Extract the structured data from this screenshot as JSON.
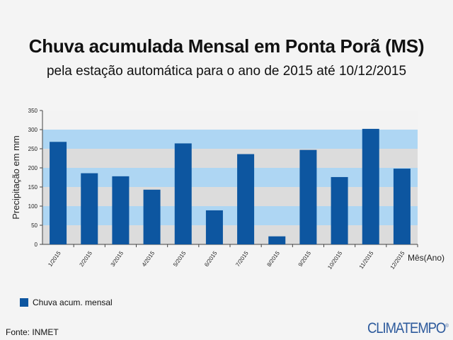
{
  "title": "Chuva acumulada Mensal em Ponta Porã (MS)",
  "subtitle": "pela estação automática para o ano de 2015 até 10/12/2015",
  "source": "Fonte: INMET",
  "logo": "CLIMATEMPO",
  "colors": {
    "bar": "#0d56a0",
    "band_gray": "#dcdcdc",
    "band_blue": "#aed6f3",
    "plot_top": "#f3f3f3"
  },
  "chart_data": {
    "type": "bar",
    "categories": [
      "1/2015",
      "2/2015",
      "3/2015",
      "4/2015",
      "5/2015",
      "6/2015",
      "7/2015",
      "8/2015",
      "9/2015",
      "10/2015",
      "11/2015",
      "12/2015"
    ],
    "series": [
      {
        "name": "Chuva acum. mensal",
        "values": [
          268,
          186,
          178,
          143,
          264,
          89,
          236,
          21,
          247,
          176,
          302,
          198
        ]
      }
    ],
    "xlabel": "Mês(Ano)",
    "ylabel": "Precipitação em mm",
    "ylim": [
      0,
      350
    ],
    "yticks": [
      0,
      50,
      100,
      150,
      200,
      250,
      300,
      350
    ],
    "grid": "alternating horizontal bands",
    "legend_position": "bottom-left"
  }
}
